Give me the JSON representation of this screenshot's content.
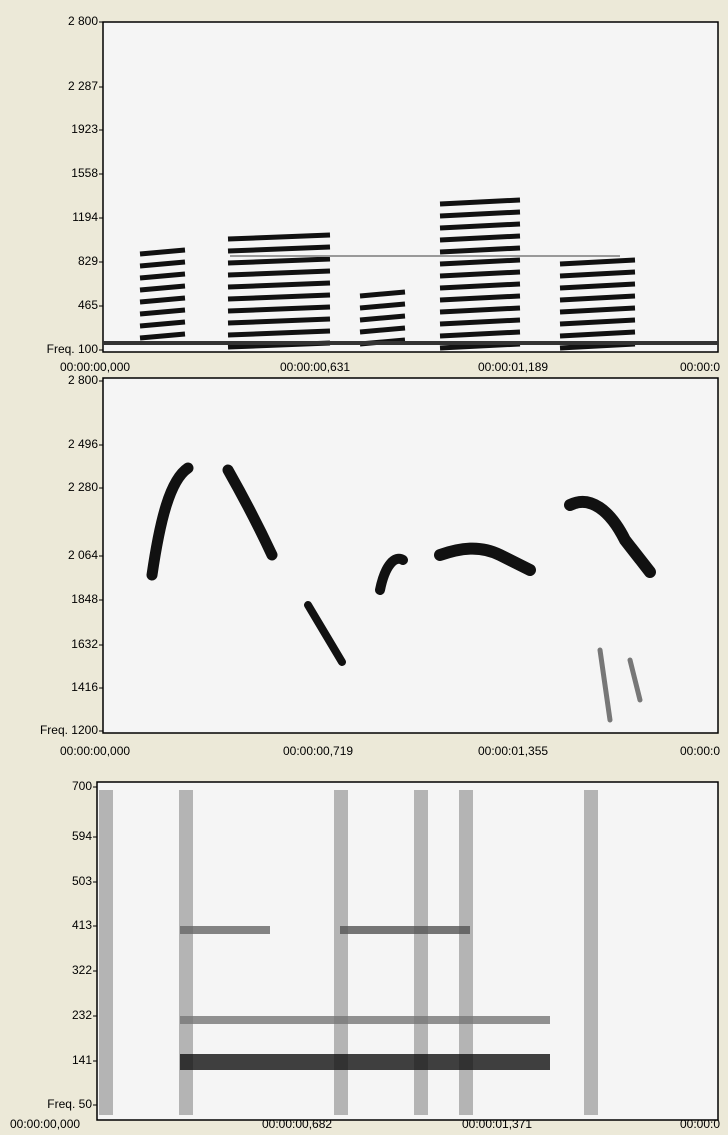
{
  "panels": [
    {
      "yticks": [
        "2 800",
        "2 287",
        "1923",
        "1558",
        "1194",
        "829",
        "465",
        "Freq. 100"
      ],
      "xticks": [
        "00:00:00,000",
        "00:00:00,631",
        "00:00:01,189",
        "00:00:0"
      ]
    },
    {
      "yticks": [
        "2 800",
        "2 496",
        "2 280",
        "2 064",
        "1848",
        "1632",
        "1416",
        "Freq. 1200"
      ],
      "xticks": [
        "00:00:00,000",
        "00:00:00,719",
        "00:00:01,355",
        "00:00:0"
      ]
    },
    {
      "yticks": [
        "700",
        "594",
        "503",
        "413",
        "322",
        "232",
        "141",
        "Freq. 50"
      ],
      "xticks": [
        "00:00:00,000",
        "00:00:00,682",
        "00:00:01,371",
        "00:00:0"
      ]
    }
  ]
}
